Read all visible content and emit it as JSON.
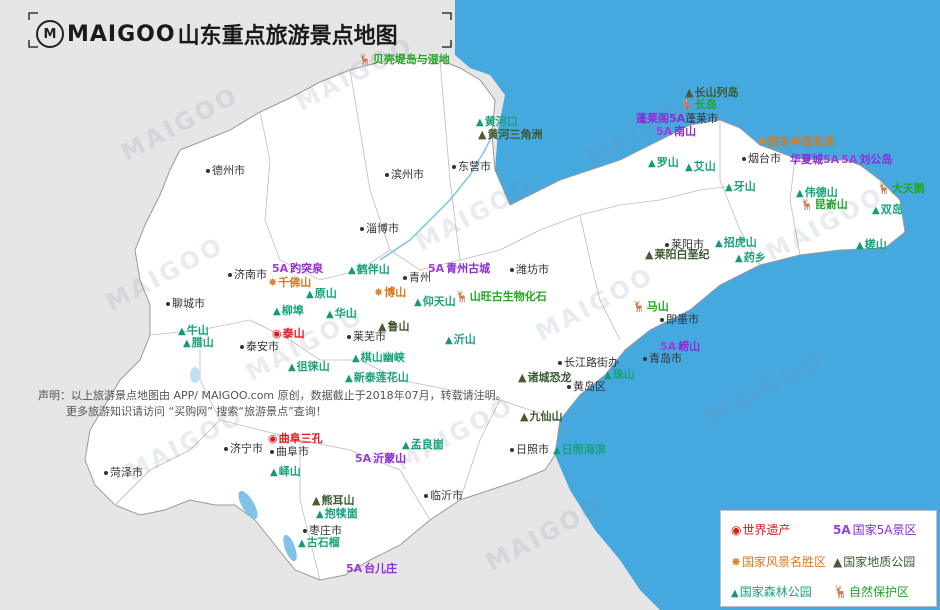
{
  "title": {
    "brand": "MAIGOO",
    "text": "山东重点旅游景点地图"
  },
  "cities": [
    "德州市",
    "滨州市",
    "东营市",
    "淄博市",
    "潍坊市",
    "济南市",
    "聊城市",
    "泰安市",
    "莱芜市",
    "烟台市",
    "莱阳市",
    "即墨市",
    "青岛市",
    "长江路街办",
    "黄岛区",
    "日照市",
    "济宁市",
    "曲阜市",
    "菏泽市",
    "临沂市",
    "枣庄市",
    "青州"
  ],
  "spots": {
    "coast": "贝壳堤岛与湿地",
    "huanghe_mouth": "黄河口",
    "huanghe_delta": "黄河三角洲",
    "changshan_islands": "长山列岛",
    "changdao": "长岛",
    "penglai": "蓬莱阁",
    "penglai_5a": "5A",
    "penglai_suffix": "蓬莱市",
    "nanshan": "南山",
    "jiaodong": "胶东半岛海滨",
    "huaxia": "华夏城",
    "liugongdao": "刘公岛",
    "luoshan": "罗山",
    "aishan": "艾山",
    "yashan": "牙山",
    "weidedshan": "伟德山",
    "kunyushan": "昆嵛山",
    "tiane": "大天鹅",
    "shuangdao": "双岛",
    "chashan": "槎山",
    "laiyang_fossil": "莱阳白垩纪",
    "zhaohushan": "招虎山",
    "yaoshan": "药乡",
    "mashan": "马山",
    "laoshan": "崂山",
    "zhushan": "珠山",
    "zhucheng": "诸城恐龙",
    "jiuxianshan": "九仙山",
    "rizhao_coast": "日照海滨",
    "baotuquan": "趵突泉",
    "qianfoshan": "千佛山",
    "hebanshan": "鹤伴山",
    "qingzhou_old": "青州古城",
    "boshan": "博山",
    "yuanshan": "原山",
    "shanwang": "山旺古生物化石",
    "yangtianshan": "仰天山",
    "liubu": "柳埠",
    "huashan": "华山",
    "taishan": "泰山",
    "niushan": "牛山",
    "lashan": "腊山",
    "lushan": "鲁山",
    "yishan": "沂山",
    "zulaishan": "徂徕山",
    "jishan": "棋山幽峡",
    "xintai": "新泰莲花山",
    "sankong": "曲阜三孔",
    "yimengshan": "沂蒙山",
    "mengliang": "孟良崮",
    "fengshan": "峄山",
    "xiongershan": "熊耳山",
    "baodugu": "抱犊崮",
    "shiliu": "古石榴",
    "taierzhuang": "台儿庄"
  },
  "disclaimer": {
    "line1": "声明：以上旅游景点地图由 APP/ MAIGOO.com 原创，数据截止于2018年07月，转载请注明。",
    "line2": "更多旅游知识请访问 “买购网” 搜索“旅游景点”查询！"
  },
  "legend": {
    "heritage": "世界遗产",
    "a5": "国家5A景区",
    "a5_badge": "5A",
    "scenic": "国家风景名胜区",
    "geo": "国家地质公园",
    "forest": "国家森林公园",
    "reserve": "自然保护区"
  },
  "watermark": "MAIGOO",
  "colors": {
    "sea": "#45a8df",
    "land": "#ffffff",
    "neighbor": "#e6e6e6",
    "forest": "#18a27d",
    "a5": "#8e2bd6",
    "heritage": "#e01a1a",
    "scenic": "#d9781c",
    "geo": "#3a5a30",
    "reserve": "#23a623"
  }
}
